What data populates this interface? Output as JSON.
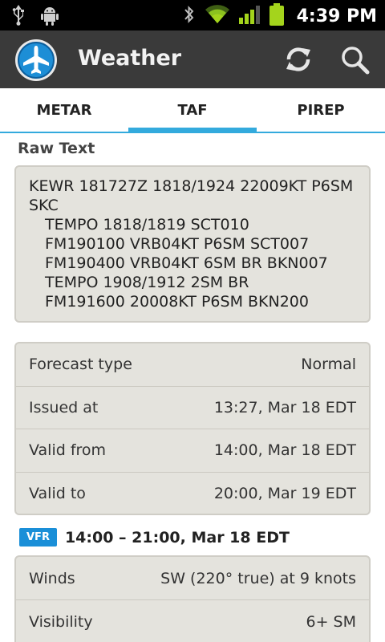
{
  "status_bar": {
    "time": "4:39 PM",
    "icons": [
      "usb-icon",
      "android-debug-icon",
      "bluetooth-icon",
      "wifi-icon",
      "signal-icon",
      "battery-icon"
    ]
  },
  "action_bar": {
    "title": "Weather",
    "icons": [
      "app-airplane-icon",
      "refresh-icon",
      "search-icon"
    ]
  },
  "tabs": [
    {
      "label": "METAR",
      "active": false
    },
    {
      "label": "TAF",
      "active": true
    },
    {
      "label": "PIREP",
      "active": false
    }
  ],
  "raw_text": {
    "title": "Raw Text",
    "lines": [
      "KEWR 181727Z 1818/1924 22009KT P6SM",
      "SKC",
      "TEMPO 1818/1819 SCT010",
      "FM190100 VRB04KT P6SM SCT007",
      "FM190400 VRB04KT 6SM BR BKN007",
      "TEMPO 1908/1912 2SM BR",
      "FM191600 20008KT P6SM BKN200"
    ]
  },
  "info": [
    {
      "label": "Forecast type",
      "value": "Normal"
    },
    {
      "label": "Issued at",
      "value": "13:27, Mar 18 EDT"
    },
    {
      "label": "Valid from",
      "value": "14:00, Mar 18 EDT"
    },
    {
      "label": "Valid to",
      "value": "20:00, Mar 19 EDT"
    }
  ],
  "period": {
    "badge": "VFR",
    "badge_color": "#1a8fd8",
    "range": "14:00 – 21:00, Mar 18 EDT"
  },
  "forecast": [
    {
      "label": "Winds",
      "value": "SW (220° true) at 9 knots"
    },
    {
      "label": "Visibility",
      "value": "6+ SM"
    }
  ],
  "colors": {
    "accent": "#33aadd",
    "action_bar": "#3a3a3a",
    "card": "#e4e3dd",
    "battery": "#a4d41c"
  }
}
